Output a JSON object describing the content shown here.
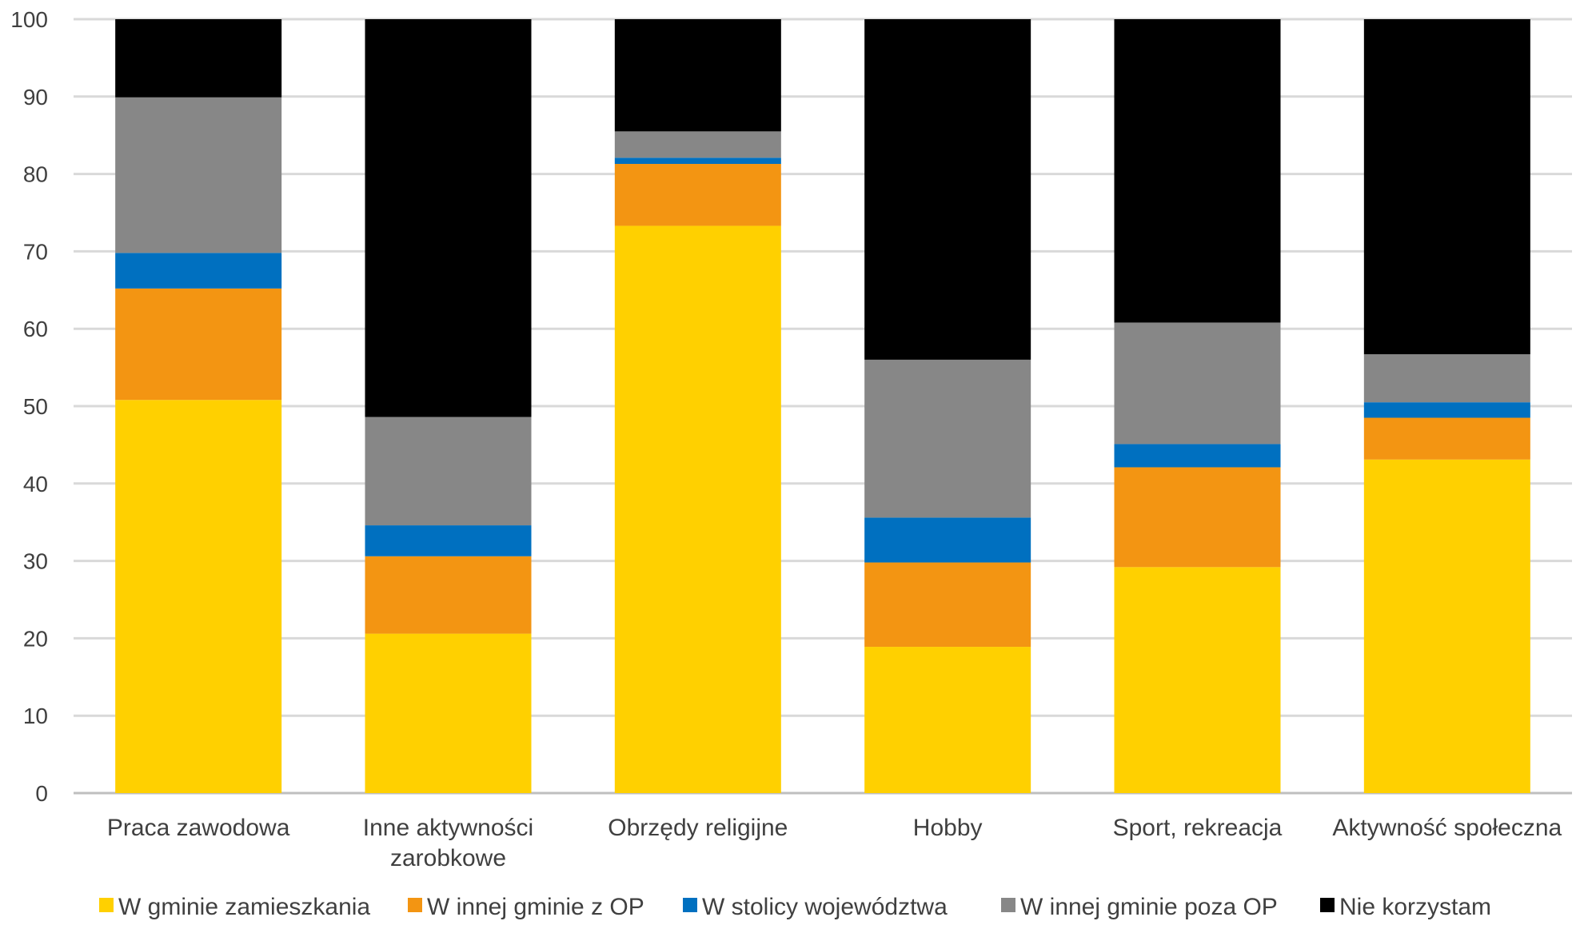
{
  "chart_data": {
    "type": "bar",
    "stacked": true,
    "categories": [
      [
        "Praca zawodowa"
      ],
      [
        "Inne aktywności",
        "zarobkowe"
      ],
      [
        "Obrzędy religijne"
      ],
      [
        "Hobby"
      ],
      [
        "Sport, rekreacja"
      ],
      [
        "Aktywność społeczna"
      ]
    ],
    "series": [
      {
        "name": "W gminie zamieszkania",
        "color": "#FFD000",
        "values": [
          50.8,
          20.6,
          73.3,
          18.9,
          29.2,
          43.1
        ]
      },
      {
        "name": "W innej gminie z OP",
        "color": "#F39512",
        "values": [
          14.4,
          10.0,
          8.0,
          10.9,
          12.9,
          5.4
        ]
      },
      {
        "name": "W stolicy województwa",
        "color": "#0070C0",
        "values": [
          4.6,
          4.0,
          0.8,
          5.8,
          3.0,
          2.0
        ]
      },
      {
        "name": "W innej gminie poza OP",
        "color": "#878787",
        "values": [
          20.1,
          14.0,
          3.4,
          20.4,
          15.7,
          6.2
        ]
      },
      {
        "name": "Nie korzystam",
        "color": "#000000",
        "values": [
          10.1,
          51.4,
          14.5,
          44.0,
          39.2,
          43.3
        ]
      }
    ],
    "ylim": [
      0,
      100
    ],
    "yticks": [
      0,
      10,
      20,
      30,
      40,
      50,
      60,
      70,
      80,
      90,
      100
    ],
    "grid": true,
    "legend": "bottom",
    "xlabel": "",
    "ylabel": "",
    "title": ""
  }
}
